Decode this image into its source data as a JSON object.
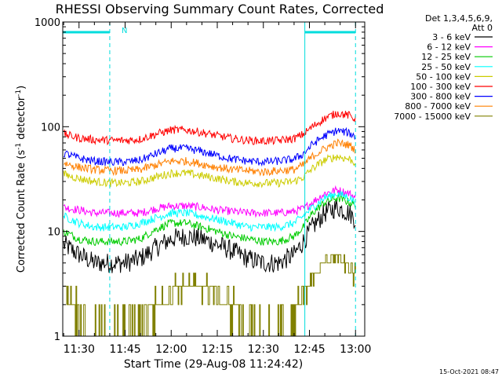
{
  "chart_data": {
    "type": "line",
    "title": "RHESSI Observing Summary Count Rates, Corrected",
    "xlabel": "Start Time (29-Aug-08 11:24:42)",
    "ylabel_main": "Corrected Count Rate (s",
    "ylabel_sup1": "-1",
    "ylabel_mid": " detector",
    "ylabel_sup2": "-1",
    "ylabel_end": ")",
    "yscale": "log",
    "ylim": [
      1,
      1000
    ],
    "xlim": [
      "11:24:42",
      "13:03:00"
    ],
    "x_ticks": [
      "11:30",
      "11:45",
      "12:00",
      "12:15",
      "12:30",
      "12:45",
      "13:00"
    ],
    "y_ticks": [
      "1",
      "10",
      "100",
      "1000"
    ],
    "grid": false,
    "legend_position": "right",
    "legend_header": [
      "Det 1,3,4,5,6,9,",
      "Att 0"
    ],
    "annotations": {
      "night_marker": "N",
      "footer_date": "15-Oct-2021 08:47"
    },
    "markers": {
      "vertical_lines": [
        "11:24:42",
        "11:40:00",
        "12:43:30",
        "13:00:00"
      ],
      "night_bar_start": [
        "11:24:42",
        "11:40:00"
      ],
      "night_bar_end": [
        "12:43:30",
        "13:00:00"
      ]
    },
    "series": [
      {
        "name": "3 - 6 keV",
        "color": "#000000",
        "x": [
          "11:25",
          "11:30",
          "11:35",
          "11:40",
          "11:45",
          "11:50",
          "11:55",
          "12:00",
          "12:05",
          "12:10",
          "12:15",
          "12:20",
          "12:25",
          "12:30",
          "12:35",
          "12:40",
          "12:43",
          "12:46",
          "12:50",
          "12:54",
          "12:58",
          "13:00"
        ],
        "values": [
          7.5,
          6,
          5,
          5,
          5,
          5.5,
          7,
          8.5,
          9,
          8.5,
          7.5,
          6.5,
          5.5,
          5,
          5,
          6,
          8,
          11,
          15,
          17,
          15,
          13
        ]
      },
      {
        "name": "6 - 12 keV",
        "color": "#ff00ff",
        "x": [
          "11:25",
          "11:30",
          "11:35",
          "11:40",
          "11:45",
          "11:50",
          "11:55",
          "12:00",
          "12:05",
          "12:10",
          "12:15",
          "12:20",
          "12:25",
          "12:30",
          "12:35",
          "12:40",
          "12:43",
          "12:46",
          "12:50",
          "12:54",
          "12:58",
          "13:00"
        ],
        "values": [
          17,
          16,
          15,
          15,
          15,
          15,
          16.5,
          17.5,
          17.5,
          17,
          16,
          15.5,
          15,
          15,
          15,
          15.5,
          16.5,
          19,
          23,
          25,
          23,
          21
        ]
      },
      {
        "name": "12 - 25 keV",
        "color": "#00cc00",
        "x": [
          "11:25",
          "11:30",
          "11:35",
          "11:40",
          "11:45",
          "11:50",
          "11:55",
          "12:00",
          "12:05",
          "12:10",
          "12:15",
          "12:20",
          "12:25",
          "12:30",
          "12:35",
          "12:40",
          "12:43",
          "12:46",
          "12:50",
          "12:54",
          "12:58",
          "13:00"
        ],
        "values": [
          10,
          8.5,
          8,
          8,
          8,
          8.5,
          10.5,
          12,
          12,
          11,
          10,
          9,
          8.5,
          8,
          8,
          9,
          11,
          15,
          19,
          21,
          19,
          18
        ]
      },
      {
        "name": "25 - 50 keV",
        "color": "#00ffff",
        "x": [
          "11:25",
          "11:30",
          "11:35",
          "11:40",
          "11:45",
          "11:50",
          "11:55",
          "12:00",
          "12:05",
          "12:10",
          "12:15",
          "12:20",
          "12:25",
          "12:30",
          "12:35",
          "12:40",
          "12:43",
          "12:46",
          "12:50",
          "12:54",
          "12:58",
          "13:00"
        ],
        "values": [
          14,
          12,
          11,
          11,
          11,
          12,
          13.5,
          15,
          15,
          14,
          13,
          12,
          11,
          11,
          11,
          12,
          14,
          17,
          21,
          23,
          21,
          19
        ]
      },
      {
        "name": "50 - 100 keV",
        "color": "#cccc00",
        "x": [
          "11:25",
          "11:30",
          "11:35",
          "11:40",
          "11:45",
          "11:50",
          "11:55",
          "12:00",
          "12:05",
          "12:10",
          "12:15",
          "12:20",
          "12:25",
          "12:30",
          "12:35",
          "12:40",
          "12:43",
          "12:46",
          "12:50",
          "12:54",
          "12:58",
          "13:00"
        ],
        "values": [
          35,
          32,
          30,
          29,
          29,
          30,
          33,
          36,
          36,
          34,
          32,
          30,
          29,
          29,
          29,
          30,
          33,
          40,
          48,
          52,
          49,
          45
        ]
      },
      {
        "name": "100 - 300 keV",
        "color": "#ff0000",
        "x": [
          "11:25",
          "11:30",
          "11:35",
          "11:40",
          "11:45",
          "11:50",
          "11:55",
          "12:00",
          "12:05",
          "12:10",
          "12:15",
          "12:20",
          "12:25",
          "12:30",
          "12:35",
          "12:40",
          "12:43",
          "12:46",
          "12:50",
          "12:54",
          "12:58",
          "13:00"
        ],
        "values": [
          85,
          78,
          75,
          74,
          74,
          76,
          85,
          93,
          93,
          88,
          82,
          77,
          74,
          73,
          74,
          77,
          85,
          100,
          120,
          135,
          128,
          118
        ]
      },
      {
        "name": "300 - 800 keV",
        "color": "#0000ff",
        "x": [
          "11:25",
          "11:30",
          "11:35",
          "11:40",
          "11:45",
          "11:50",
          "11:55",
          "12:00",
          "12:05",
          "12:10",
          "12:15",
          "12:20",
          "12:25",
          "12:30",
          "12:35",
          "12:40",
          "12:43",
          "12:46",
          "12:50",
          "12:54",
          "12:58",
          "13:00"
        ],
        "values": [
          56,
          50,
          47,
          46,
          46,
          48,
          55,
          62,
          62,
          58,
          53,
          49,
          47,
          46,
          47,
          49,
          55,
          68,
          82,
          92,
          87,
          80
        ]
      },
      {
        "name": "800 - 7000 keV",
        "color": "#ff8000",
        "x": [
          "11:25",
          "11:30",
          "11:35",
          "11:40",
          "11:45",
          "11:50",
          "11:55",
          "12:00",
          "12:05",
          "12:10",
          "12:15",
          "12:20",
          "12:25",
          "12:30",
          "12:35",
          "12:40",
          "12:43",
          "12:46",
          "12:50",
          "12:54",
          "12:58",
          "13:00"
        ],
        "values": [
          45,
          41,
          39,
          38,
          38,
          39,
          43,
          47,
          47,
          44,
          41,
          39,
          38,
          37,
          38,
          39,
          43,
          52,
          62,
          70,
          67,
          60
        ]
      },
      {
        "name": "7000 - 15000 keV",
        "color": "#808000",
        "x": [
          "11:25",
          "11:29",
          "11:33",
          "11:37",
          "11:41",
          "11:45",
          "11:49",
          "11:53",
          "11:57",
          "12:01",
          "12:05",
          "12:09",
          "12:13",
          "12:17",
          "12:21",
          "12:25",
          "12:29",
          "12:33",
          "12:37",
          "12:41",
          "12:44",
          "12:47",
          "12:50",
          "12:53",
          "12:56",
          "12:59",
          "13:00"
        ],
        "values": [
          3,
          2,
          1,
          1,
          1,
          1,
          1,
          2,
          2,
          3,
          3,
          3,
          3,
          2,
          2,
          1,
          1,
          1,
          1,
          2,
          3,
          4,
          5,
          6,
          5,
          4,
          4
        ]
      }
    ]
  }
}
